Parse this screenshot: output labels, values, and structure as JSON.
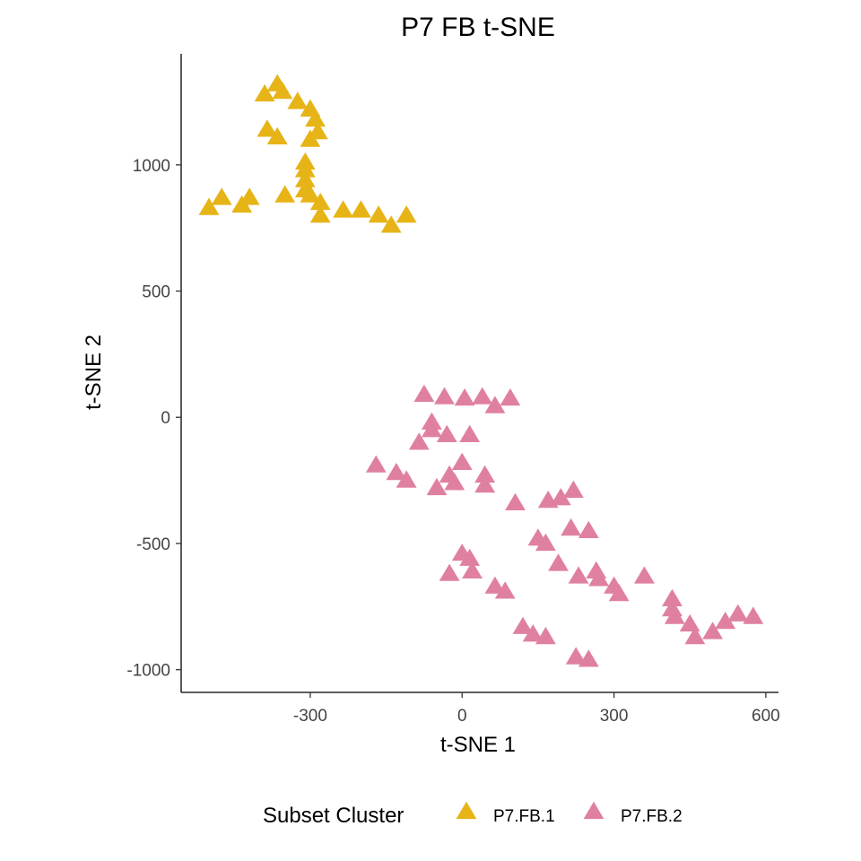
{
  "chart_data": {
    "type": "scatter",
    "title": "P7 FB t-SNE",
    "xlabel": "t-SNE 1",
    "ylabel": "t-SNE 2",
    "xlim": [
      -555,
      625
    ],
    "ylim": [
      -1090,
      1440
    ],
    "xticks": [
      -300,
      0,
      300,
      600
    ],
    "xtick_labels": [
      "-300",
      "0",
      "300",
      "600"
    ],
    "yticks": [
      -1000,
      -500,
      0,
      500,
      1000
    ],
    "ytick_labels": [
      "-1000",
      "-500",
      "0",
      "500",
      "1000"
    ],
    "marker": "triangle",
    "grid": false,
    "legend": {
      "title": "Subset Cluster",
      "position": "bottom"
    },
    "series": [
      {
        "name": "P7.FB.1",
        "color": "#E7B417",
        "points": [
          [
            -390,
            1280
          ],
          [
            -365,
            1320
          ],
          [
            -355,
            1290
          ],
          [
            -325,
            1250
          ],
          [
            -300,
            1220
          ],
          [
            -290,
            1180
          ],
          [
            -385,
            1140
          ],
          [
            -365,
            1110
          ],
          [
            -300,
            1100
          ],
          [
            -285,
            1130
          ],
          [
            -310,
            1010
          ],
          [
            -310,
            980
          ],
          [
            -310,
            940
          ],
          [
            -310,
            900
          ],
          [
            -300,
            880
          ],
          [
            -350,
            880
          ],
          [
            -280,
            850
          ],
          [
            -280,
            800
          ],
          [
            -500,
            830
          ],
          [
            -475,
            870
          ],
          [
            -435,
            840
          ],
          [
            -420,
            870
          ],
          [
            -235,
            820
          ],
          [
            -200,
            820
          ],
          [
            -165,
            800
          ],
          [
            -140,
            760
          ],
          [
            -110,
            800
          ]
        ]
      },
      {
        "name": "P7.FB.2",
        "color": "#E080A0",
        "points": [
          [
            -75,
            90
          ],
          [
            -35,
            80
          ],
          [
            5,
            75
          ],
          [
            40,
            80
          ],
          [
            65,
            45
          ],
          [
            95,
            75
          ],
          [
            -60,
            -20
          ],
          [
            -60,
            -50
          ],
          [
            -85,
            -100
          ],
          [
            -30,
            -70
          ],
          [
            15,
            -70
          ],
          [
            -170,
            -190
          ],
          [
            -130,
            -220
          ],
          [
            -110,
            -250
          ],
          [
            0,
            -180
          ],
          [
            -50,
            -280
          ],
          [
            -15,
            -260
          ],
          [
            -25,
            -230
          ],
          [
            45,
            -230
          ],
          [
            45,
            -270
          ],
          [
            105,
            -340
          ],
          [
            170,
            -330
          ],
          [
            195,
            -320
          ],
          [
            220,
            -290
          ],
          [
            215,
            -440
          ],
          [
            250,
            -450
          ],
          [
            150,
            -480
          ],
          [
            165,
            -500
          ],
          [
            190,
            -580
          ],
          [
            230,
            -630
          ],
          [
            265,
            -610
          ],
          [
            270,
            -640
          ],
          [
            300,
            -670
          ],
          [
            310,
            -700
          ],
          [
            360,
            -630
          ],
          [
            415,
            -720
          ],
          [
            415,
            -760
          ],
          [
            420,
            -790
          ],
          [
            450,
            -820
          ],
          [
            460,
            -870
          ],
          [
            495,
            -850
          ],
          [
            520,
            -810
          ],
          [
            545,
            -780
          ],
          [
            575,
            -790
          ],
          [
            0,
            -540
          ],
          [
            15,
            -560
          ],
          [
            -25,
            -620
          ],
          [
            20,
            -610
          ],
          [
            65,
            -670
          ],
          [
            85,
            -690
          ],
          [
            120,
            -830
          ],
          [
            140,
            -860
          ],
          [
            165,
            -870
          ],
          [
            225,
            -950
          ],
          [
            250,
            -960
          ]
        ]
      }
    ]
  }
}
